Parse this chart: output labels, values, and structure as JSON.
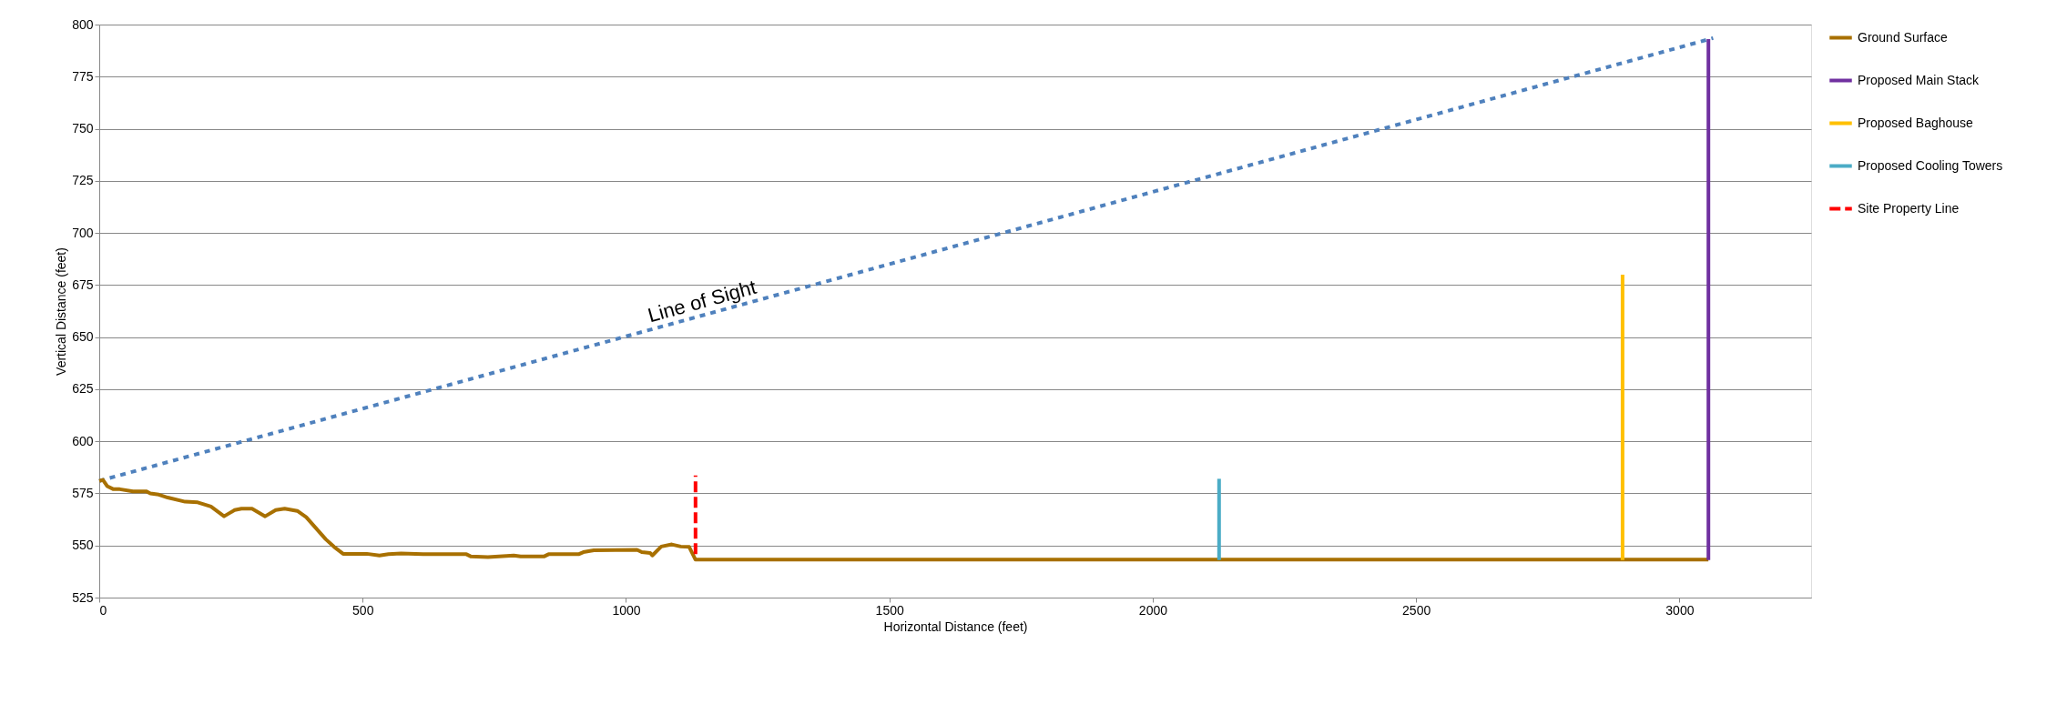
{
  "chart_data": {
    "type": "line",
    "xlabel": "Horizontal Distance (feet)",
    "ylabel": "Vertical Distance (feet)",
    "xlim": [
      0,
      3250
    ],
    "xticks": [
      0,
      500,
      1000,
      1500,
      2000,
      2500,
      3000
    ],
    "ylim": [
      525,
      800
    ],
    "yticks": [
      525,
      550,
      575,
      600,
      625,
      650,
      675,
      700,
      725,
      750,
      775,
      800
    ],
    "grid": "y",
    "legend": "right",
    "marker": "none",
    "annotations": [
      {
        "text": "Line of Sight",
        "x": 1150,
        "y": 662
      }
    ],
    "series": [
      {
        "color": "#4f81bd",
        "line_style": "dotted",
        "x": [
          0,
          3064
        ],
        "values": [
          581,
          793.5
        ]
      },
      {
        "name": "Ground Surface",
        "color": "#a87000",
        "line_style": "solid",
        "x": [
          0,
          7,
          15,
          27,
          39,
          64,
          89,
          97,
          113,
          130,
          163,
          187,
          212,
          237,
          257,
          270,
          290,
          315,
          335,
          352,
          376,
          393,
          409,
          430,
          446,
          463,
          508,
          532,
          549,
          573,
          615,
          697,
          705,
          738,
          787,
          800,
          845,
          853,
          910,
          919,
          939,
          1021,
          1030,
          1046,
          1050,
          1067,
          1087,
          1104,
          1120,
          1132,
          3055
        ],
        "values": [
          581,
          581.5,
          578.5,
          577,
          577,
          576,
          576,
          575,
          574.4,
          573,
          571,
          570.7,
          568.7,
          564,
          567,
          567.7,
          567.7,
          564,
          567,
          567.7,
          566.6,
          563.6,
          559,
          553,
          549.3,
          546,
          546,
          545.2,
          545.8,
          546.2,
          545.8,
          545.8,
          544.8,
          544.4,
          545.2,
          544.8,
          544.8,
          545.8,
          545.8,
          546.8,
          547.7,
          547.9,
          546.8,
          546.4,
          545.2,
          549.5,
          550.5,
          549.5,
          549.3,
          543.2,
          543.2
        ]
      },
      {
        "name": "Proposed Main Stack",
        "color": "#7030a0",
        "line_style": "solid",
        "x": [
          3055,
          3055
        ],
        "values": [
          543,
          793
        ]
      },
      {
        "name": "Proposed Baghouse",
        "color": "#ffc000",
        "line_style": "solid",
        "x": [
          2892,
          2892
        ],
        "values": [
          543,
          680
        ]
      },
      {
        "name": "Proposed Cooling Towers",
        "color": "#4bacc6",
        "line_style": "solid",
        "x": [
          2126,
          2126
        ],
        "values": [
          543,
          582
        ]
      },
      {
        "name": "Site Property Line",
        "color": "#ff0000",
        "line_style": "dashed",
        "x": [
          1132,
          1132
        ],
        "values": [
          545.8,
          583.6
        ]
      }
    ]
  }
}
